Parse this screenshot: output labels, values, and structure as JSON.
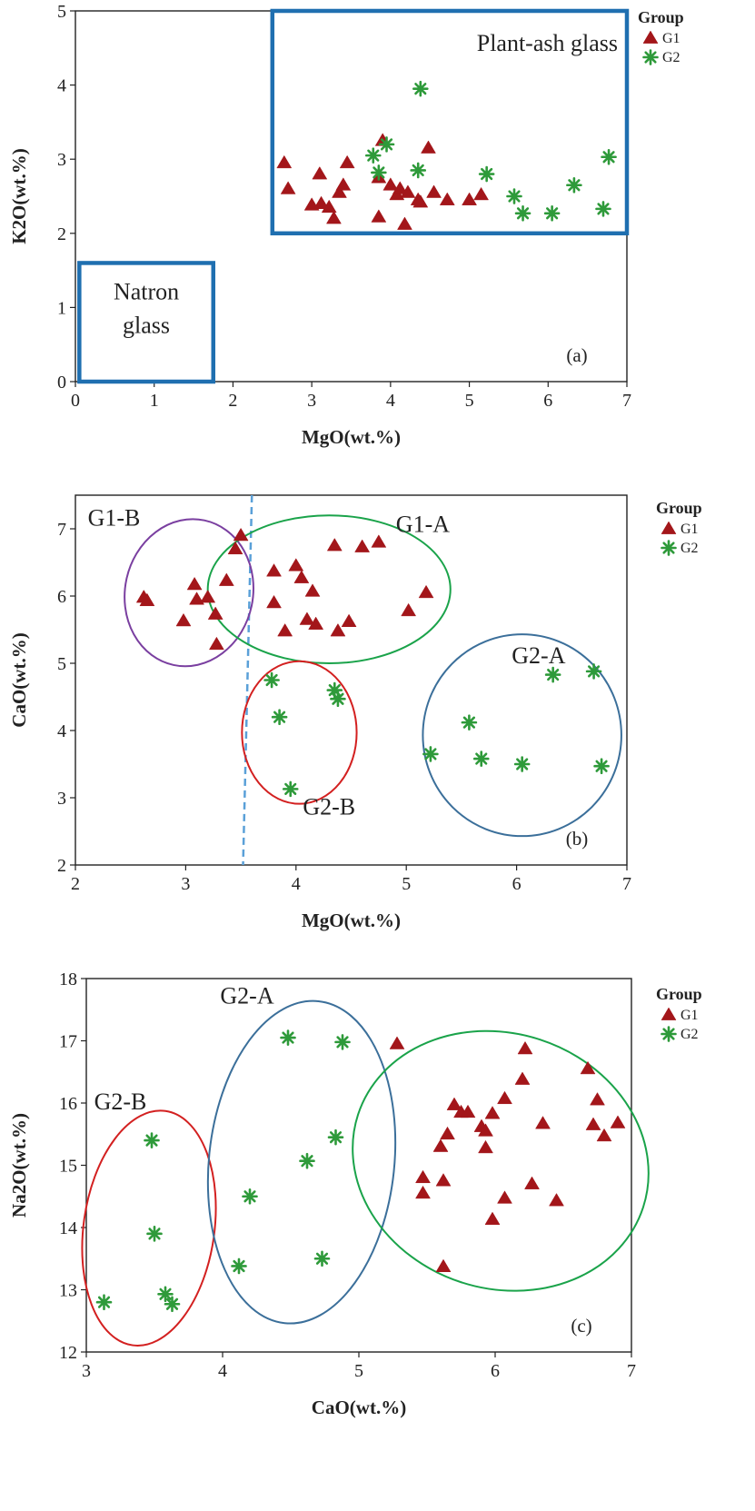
{
  "colors": {
    "g1": "#a3161a",
    "g2": "#2e9a3a",
    "box": "#1f6fb0",
    "g1a_ellipse": "#1aa34a",
    "g1b_ellipse": "#7a3fa0",
    "g2a_ellipse": "#3b6f9a",
    "g2b_ellipse": "#d32020",
    "divider": "#5aa0d8"
  },
  "legend": {
    "title": "Group",
    "items": [
      {
        "label": "G1",
        "marker": "triangle"
      },
      {
        "label": "G2",
        "marker": "star"
      }
    ]
  },
  "chart_data": [
    {
      "type": "scatter",
      "xlabel": "MgO(wt.%)",
      "ylabel": "K2O(wt.%)",
      "xlim": [
        0,
        7
      ],
      "ylim": [
        0,
        5
      ],
      "xticks": [
        "0",
        "1",
        "2",
        "3",
        "4",
        "5",
        "6",
        "7"
      ],
      "yticks": [
        "0",
        "1",
        "2",
        "3",
        "4",
        "5"
      ],
      "panel_label": "(a)",
      "regions": [
        {
          "label": "Plant-ash glass",
          "x": [
            2.5,
            7.0
          ],
          "y": [
            2.0,
            5.0
          ]
        },
        {
          "label": "Natron glass",
          "label_lines": [
            "Natron",
            "glass"
          ],
          "x": [
            0.05,
            1.75
          ],
          "y": [
            0.0,
            1.6
          ]
        }
      ],
      "series": [
        {
          "name": "G1",
          "points": [
            [
              2.65,
              2.95
            ],
            [
              2.7,
              2.6
            ],
            [
              3.0,
              2.38
            ],
            [
              3.1,
              2.8
            ],
            [
              3.12,
              2.4
            ],
            [
              3.22,
              2.35
            ],
            [
              3.28,
              2.2
            ],
            [
              3.35,
              2.55
            ],
            [
              3.4,
              2.65
            ],
            [
              3.45,
              2.95
            ],
            [
              3.85,
              2.75
            ],
            [
              3.85,
              2.22
            ],
            [
              3.9,
              3.25
            ],
            [
              4.0,
              2.65
            ],
            [
              4.08,
              2.52
            ],
            [
              4.12,
              2.6
            ],
            [
              4.18,
              2.12
            ],
            [
              4.22,
              2.55
            ],
            [
              4.35,
              2.45
            ],
            [
              4.38,
              2.42
            ],
            [
              4.48,
              3.15
            ],
            [
              4.55,
              2.55
            ],
            [
              4.72,
              2.45
            ],
            [
              5.0,
              2.45
            ],
            [
              5.15,
              2.52
            ]
          ]
        },
        {
          "name": "G2",
          "points": [
            [
              3.78,
              3.05
            ],
            [
              3.85,
              2.82
            ],
            [
              3.95,
              3.2
            ],
            [
              4.35,
              2.85
            ],
            [
              4.38,
              3.95
            ],
            [
              5.22,
              2.8
            ],
            [
              5.57,
              2.5
            ],
            [
              5.68,
              2.27
            ],
            [
              6.05,
              2.27
            ],
            [
              6.33,
              2.65
            ],
            [
              6.7,
              2.33
            ],
            [
              6.77,
              3.03
            ]
          ]
        }
      ]
    },
    {
      "type": "scatter",
      "xlabel": "MgO(wt.%)",
      "ylabel": "CaO(wt.%)",
      "xlim": [
        2,
        7
      ],
      "ylim": [
        2,
        7.5
      ],
      "xticks": [
        "2",
        "3",
        "4",
        "5",
        "6",
        "7"
      ],
      "yticks": [
        "2",
        "3",
        "4",
        "5",
        "6",
        "7"
      ],
      "panel_label": "(b)",
      "annotations": [
        {
          "text": "G1-B",
          "x": 2.35,
          "y": 7.05
        },
        {
          "text": "G1-A",
          "x": 5.15,
          "y": 6.95
        },
        {
          "text": "G2-A",
          "x": 6.2,
          "y": 5.0
        },
        {
          "text": "G2-B",
          "x": 4.3,
          "y": 2.75
        }
      ],
      "ellipses": [
        {
          "group": "G1-B",
          "cx": 3.03,
          "cy": 6.05,
          "rx": 0.58,
          "ry": 1.1,
          "rotate": 12
        },
        {
          "group": "G1-A",
          "cx": 4.3,
          "cy": 6.1,
          "rx": 1.1,
          "ry": 1.1,
          "rotate": 0
        },
        {
          "group": "G2-B",
          "cx": 4.03,
          "cy": 3.97,
          "rx": 0.52,
          "ry": 1.06,
          "rotate": 0
        },
        {
          "group": "G2-A",
          "cx": 6.05,
          "cy": 3.93,
          "rx": 0.9,
          "ry": 1.5,
          "rotate": 0
        }
      ],
      "divider": {
        "x": [
          3.6,
          3.52
        ],
        "y": [
          7.5,
          2.0
        ]
      },
      "series": [
        {
          "name": "G1",
          "points": [
            [
              2.62,
              5.98
            ],
            [
              2.65,
              5.93
            ],
            [
              2.98,
              5.63
            ],
            [
              3.08,
              6.17
            ],
            [
              3.1,
              5.95
            ],
            [
              3.2,
              5.98
            ],
            [
              3.27,
              5.73
            ],
            [
              3.28,
              5.28
            ],
            [
              3.37,
              6.23
            ],
            [
              3.45,
              6.7
            ],
            [
              3.5,
              6.9
            ],
            [
              3.8,
              6.37
            ],
            [
              3.8,
              5.9
            ],
            [
              3.9,
              5.48
            ],
            [
              4.0,
              6.45
            ],
            [
              4.05,
              6.27
            ],
            [
              4.1,
              5.65
            ],
            [
              4.15,
              6.07
            ],
            [
              4.18,
              5.58
            ],
            [
              4.35,
              6.75
            ],
            [
              4.38,
              5.48
            ],
            [
              4.48,
              5.62
            ],
            [
              4.6,
              6.73
            ],
            [
              4.75,
              6.8
            ],
            [
              5.02,
              5.78
            ],
            [
              5.18,
              6.05
            ]
          ]
        },
        {
          "name": "G2",
          "points": [
            [
              3.78,
              4.75
            ],
            [
              3.85,
              4.2
            ],
            [
              3.95,
              3.13
            ],
            [
              4.35,
              4.6
            ],
            [
              4.38,
              4.47
            ],
            [
              5.22,
              3.65
            ],
            [
              5.57,
              4.12
            ],
            [
              5.68,
              3.58
            ],
            [
              6.05,
              3.5
            ],
            [
              6.33,
              4.83
            ],
            [
              6.7,
              4.88
            ],
            [
              6.77,
              3.47
            ]
          ]
        }
      ]
    },
    {
      "type": "scatter",
      "xlabel": "CaO(wt.%)",
      "ylabel": "Na2O(wt.%)",
      "xlim": [
        3,
        7
      ],
      "ylim": [
        12,
        18
      ],
      "xticks": [
        "3",
        "4",
        "5",
        "6",
        "7"
      ],
      "yticks": [
        "12",
        "13",
        "14",
        "15",
        "16",
        "17",
        "18"
      ],
      "panel_label": "(c)",
      "annotations": [
        {
          "text": "G2-A",
          "x": 4.18,
          "y": 17.6
        },
        {
          "text": "G2-B",
          "x": 3.25,
          "y": 15.9
        }
      ],
      "ellipses": [
        {
          "group": "G2-B",
          "cx": 3.46,
          "cy": 13.99,
          "rx": 0.48,
          "ry": 1.9,
          "rotate": 8
        },
        {
          "group": "G2-A",
          "cx": 4.58,
          "cy": 15.05,
          "rx": 0.68,
          "ry": 2.6,
          "rotate": 6
        },
        {
          "group": "G1",
          "cx": 6.04,
          "cy": 15.07,
          "rx": 1.1,
          "ry": 2.05,
          "rotate": 18
        }
      ],
      "series": [
        {
          "name": "G1",
          "points": [
            [
              5.28,
              16.95
            ],
            [
              5.47,
              14.8
            ],
            [
              5.47,
              14.55
            ],
            [
              5.6,
              15.3
            ],
            [
              5.62,
              14.75
            ],
            [
              5.62,
              13.37
            ],
            [
              5.65,
              15.5
            ],
            [
              5.7,
              15.97
            ],
            [
              5.75,
              15.85
            ],
            [
              5.8,
              15.85
            ],
            [
              5.9,
              15.62
            ],
            [
              5.93,
              15.55
            ],
            [
              5.93,
              15.28
            ],
            [
              5.98,
              15.83
            ],
            [
              5.98,
              14.13
            ],
            [
              6.07,
              16.07
            ],
            [
              6.07,
              14.47
            ],
            [
              6.2,
              16.38
            ],
            [
              6.22,
              16.87
            ],
            [
              6.27,
              14.7
            ],
            [
              6.35,
              15.67
            ],
            [
              6.45,
              14.43
            ],
            [
              6.68,
              16.55
            ],
            [
              6.72,
              15.65
            ],
            [
              6.75,
              16.05
            ],
            [
              6.8,
              15.47
            ],
            [
              6.9,
              15.68
            ]
          ]
        },
        {
          "name": "G2",
          "points": [
            [
              3.13,
              12.8
            ],
            [
              3.48,
              15.4
            ],
            [
              3.5,
              13.9
            ],
            [
              3.58,
              12.93
            ],
            [
              3.63,
              12.77
            ],
            [
              4.12,
              13.38
            ],
            [
              4.2,
              14.5
            ],
            [
              4.48,
              17.05
            ],
            [
              4.62,
              15.07
            ],
            [
              4.73,
              13.5
            ],
            [
              4.83,
              15.45
            ],
            [
              4.88,
              16.98
            ]
          ]
        }
      ]
    }
  ]
}
